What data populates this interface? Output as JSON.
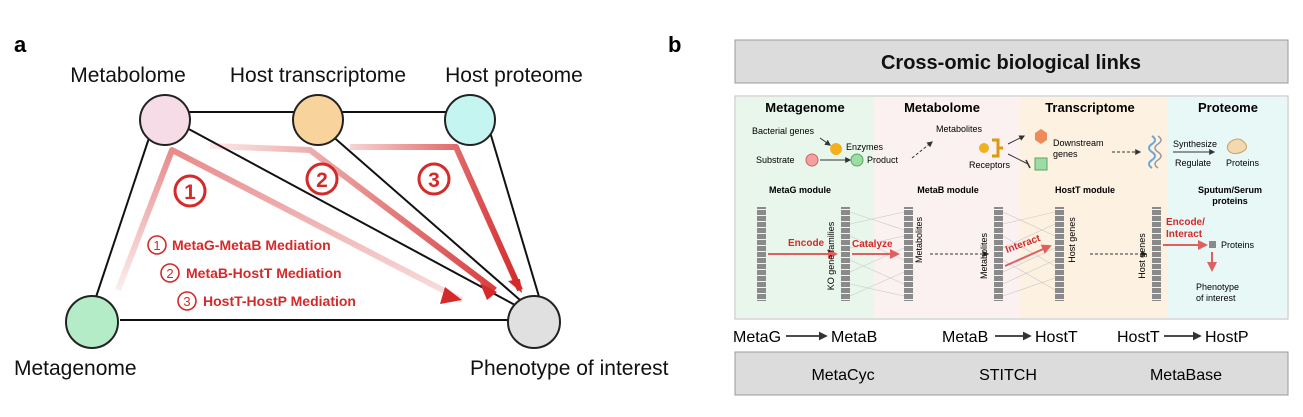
{
  "panel_a": {
    "letter": "a",
    "nodes": {
      "metabolome": "Metabolome",
      "host_transcriptome": "Host transcriptome",
      "host_proteome": "Host proteome",
      "metagenome": "Metagenome",
      "phenotype": "Phenotype of interest"
    },
    "node_colors": {
      "metabolome": "#f5dce6",
      "host_transcriptome": "#f8d49c",
      "host_proteome": "#c4f5f0",
      "metagenome": "#b4ecc8",
      "phenotype": "#e0e0e0"
    },
    "path_numbers": [
      "1",
      "2",
      "3"
    ],
    "legend": {
      "items": [
        {
          "num": "1",
          "label": "MetaG-MetaB Mediation"
        },
        {
          "num": "2",
          "label": "MetaB-HostT Mediation"
        },
        {
          "num": "3",
          "label": "HostT-HostP Mediation"
        }
      ]
    },
    "accent": "#d42a2a"
  },
  "panel_b": {
    "letter": "b",
    "header": "Cross-omic biological links",
    "sections": [
      "Metagenome",
      "Metabolome",
      "Transcriptome",
      "Proteome"
    ],
    "section_colors": [
      "#e9f6ec",
      "#fbf1f1",
      "#fdf1e2",
      "#e8f8f6"
    ],
    "top_labels": {
      "bacterial_genes": "Bacterial genes",
      "enzymes": "Enzymes",
      "substrate": "Substrate",
      "product": "Product",
      "metabolites": "Metabolites",
      "receptors": "Receptors",
      "downstream": "Downstream",
      "genes": "genes",
      "synthesize": "Synthesize",
      "regulate": "Regulate",
      "proteins": "Proteins"
    },
    "modules": {
      "metag": "MetaG module",
      "metab": "MetaB module",
      "hostt": "HostT module",
      "sputum1": "Sputum/Serum",
      "sputum2": "proteins"
    },
    "flow": {
      "encode": "Encode",
      "catalyze": "Catalyze",
      "interact": "Interact",
      "encode2": "Encode/",
      "interact2": "Interact",
      "ko": "KO gene families",
      "metabolites1": "Metabolites",
      "metabolites2": "Metabolites",
      "host_genes1": "Host genes",
      "host_genes2": "Host genes",
      "proteins": "Proteins",
      "phenotype1": "Phenotype",
      "phenotype2": "of interest"
    },
    "links": [
      {
        "from": "MetaG",
        "to": "MetaB",
        "db": "MetaCyc"
      },
      {
        "from": "MetaB",
        "to": "HostT",
        "db": "STITCH"
      },
      {
        "from": "HostT",
        "to": "HostP",
        "db": "MetaBase"
      }
    ]
  }
}
